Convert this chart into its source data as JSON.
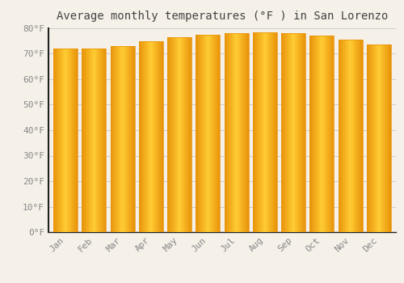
{
  "title": "Average monthly temperatures (°F ) in San Lorenzo",
  "months": [
    "Jan",
    "Feb",
    "Mar",
    "Apr",
    "May",
    "Jun",
    "Jul",
    "Aug",
    "Sep",
    "Oct",
    "Nov",
    "Dec"
  ],
  "values": [
    72,
    72,
    73,
    75,
    76.5,
    77.5,
    78,
    78.5,
    78,
    77,
    75.5,
    73.5
  ],
  "bar_color_left": "#E8930A",
  "bar_color_center": "#FFCC33",
  "bar_color_right": "#E8930A",
  "background_color": "#F5F0E8",
  "grid_color": "#CCCCCC",
  "ylim": [
    0,
    80
  ],
  "yticks": [
    0,
    10,
    20,
    30,
    40,
    50,
    60,
    70,
    80
  ],
  "ytick_labels": [
    "0°F",
    "10°F",
    "20°F",
    "30°F",
    "40°F",
    "50°F",
    "60°F",
    "70°F",
    "80°F"
  ],
  "title_fontsize": 10,
  "tick_fontsize": 8,
  "tick_color": "#888888",
  "title_color": "#444444",
  "bar_width": 0.85,
  "spine_color": "#222222"
}
